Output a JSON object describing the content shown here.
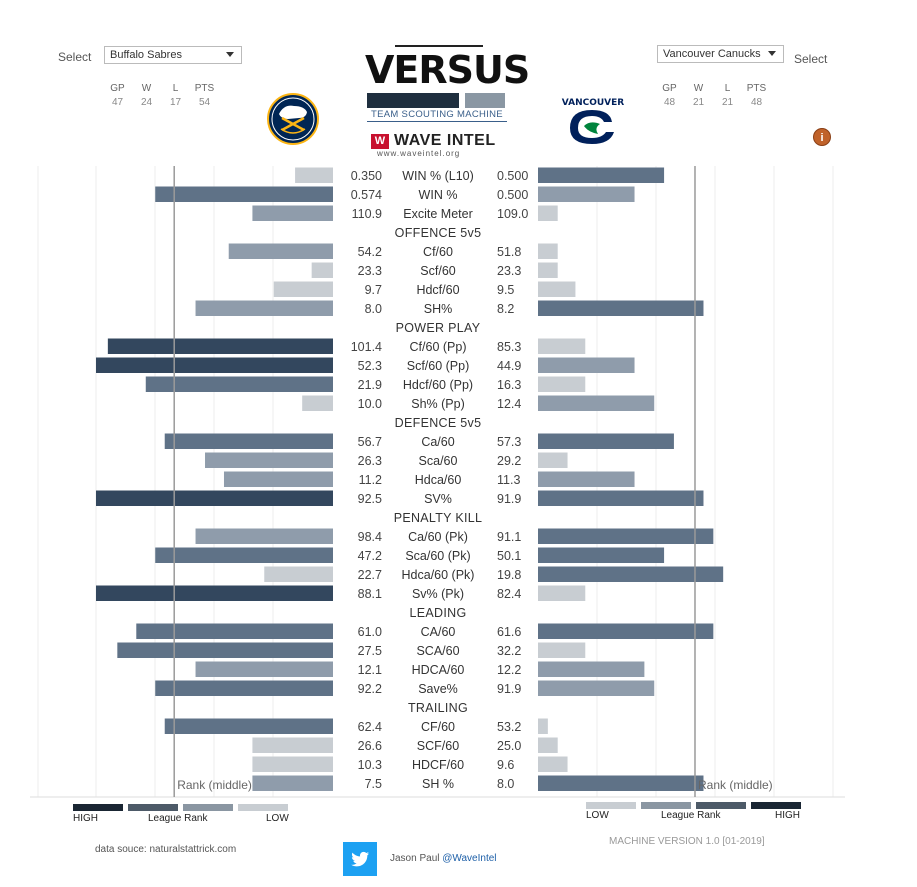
{
  "header": {
    "select_left_label": "Select",
    "select_right_label": "Select",
    "team_left": "Buffalo Sabres",
    "team_right": "Vancouver Canucks",
    "title": "VERSUS",
    "subtitle": "TEAM SCOUTING MACHINE",
    "brand_mark": "W",
    "brand": "WAVE INTEL",
    "brand_url": "www.waveintel.org",
    "info_icon": "i"
  },
  "left_stats": {
    "headers": [
      "GP",
      "W",
      "L",
      "PTS"
    ],
    "values": [
      "47",
      "24",
      "17",
      "54"
    ]
  },
  "right_stats": {
    "headers": [
      "GP",
      "W",
      "L",
      "PTS"
    ],
    "values": [
      "48",
      "21",
      "21",
      "48"
    ]
  },
  "logos": {
    "left": {
      "icon": "buffalo-sabres-logo",
      "colors": [
        "#002654",
        "#fcb514",
        "#ffffff"
      ]
    },
    "right": {
      "icon": "vancouver-canucks-logo",
      "colors": [
        "#00205b",
        "#00843d",
        "#ffffff"
      ],
      "text": "VANCOUVER"
    }
  },
  "chart_data": {
    "type": "bar",
    "description_note": "Mirrored horizontal bars: bar length = league rank strength; shade = rank tier (1 lowest .. 4 highest). Vertical reference line = middle rank.",
    "rows": [
      {
        "kind": "stat",
        "label": "WIN % (L10)",
        "left": "0.350",
        "right": "0.500",
        "left_len": 0.16,
        "left_tier": 1,
        "right_len": 0.64,
        "right_tier": 3
      },
      {
        "kind": "stat",
        "label": "WIN %",
        "left": "0.574",
        "right": "0.500",
        "left_len": 0.75,
        "left_tier": 3,
        "right_len": 0.49,
        "right_tier": 2
      },
      {
        "kind": "stat",
        "label": "Excite Meter",
        "left": "110.9",
        "right": "109.0",
        "left_len": 0.34,
        "left_tier": 2,
        "right_len": 0.1,
        "right_tier": 1
      },
      {
        "kind": "section",
        "label": "OFFENCE 5v5"
      },
      {
        "kind": "stat",
        "label": "Cf/60",
        "left": "54.2",
        "right": "51.8",
        "left_len": 0.44,
        "left_tier": 2,
        "right_len": 0.1,
        "right_tier": 1
      },
      {
        "kind": "stat",
        "label": "Scf/60",
        "left": "23.3",
        "right": "23.3",
        "left_len": 0.09,
        "left_tier": 1,
        "right_len": 0.1,
        "right_tier": 1
      },
      {
        "kind": "stat",
        "label": "Hdcf/60",
        "left": "9.7",
        "right": "9.5",
        "left_len": 0.25,
        "left_tier": 1,
        "right_len": 0.19,
        "right_tier": 1
      },
      {
        "kind": "stat",
        "label": "SH%",
        "left": "8.0",
        "right": "8.2",
        "left_len": 0.58,
        "left_tier": 2,
        "right_len": 0.84,
        "right_tier": 3
      },
      {
        "kind": "section",
        "label": "POWER PLAY"
      },
      {
        "kind": "stat",
        "label": "Cf/60 (Pp)",
        "left": "101.4",
        "right": "85.3",
        "left_len": 0.95,
        "left_tier": 4,
        "right_len": 0.24,
        "right_tier": 1
      },
      {
        "kind": "stat",
        "label": "Scf/60 (Pp)",
        "left": "52.3",
        "right": "44.9",
        "left_len": 1.0,
        "left_tier": 4,
        "right_len": 0.49,
        "right_tier": 2
      },
      {
        "kind": "stat",
        "label": "Hdcf/60 (Pp)",
        "left": "21.9",
        "right": "16.3",
        "left_len": 0.79,
        "left_tier": 3,
        "right_len": 0.24,
        "right_tier": 1
      },
      {
        "kind": "stat",
        "label": "Sh% (Pp)",
        "left": "10.0",
        "right": "12.4",
        "left_len": 0.13,
        "left_tier": 1,
        "right_len": 0.59,
        "right_tier": 2
      },
      {
        "kind": "section",
        "label": "DEFENCE 5v5"
      },
      {
        "kind": "stat",
        "label": "Ca/60",
        "left": "56.7",
        "right": "57.3",
        "left_len": 0.71,
        "left_tier": 3,
        "right_len": 0.69,
        "right_tier": 3
      },
      {
        "kind": "stat",
        "label": "Sca/60",
        "left": "26.3",
        "right": "29.2",
        "left_len": 0.54,
        "left_tier": 2,
        "right_len": 0.15,
        "right_tier": 1
      },
      {
        "kind": "stat",
        "label": "Hdca/60",
        "left": "11.2",
        "right": "11.3",
        "left_len": 0.46,
        "left_tier": 2,
        "right_len": 0.49,
        "right_tier": 2
      },
      {
        "kind": "stat",
        "label": "SV%",
        "left": "92.5",
        "right": "91.9",
        "left_len": 1.0,
        "left_tier": 4,
        "right_len": 0.84,
        "right_tier": 3
      },
      {
        "kind": "section",
        "label": "PENALTY KILL"
      },
      {
        "kind": "stat",
        "label": "Ca/60 (Pk)",
        "left": "98.4",
        "right": "91.1",
        "left_len": 0.58,
        "left_tier": 2,
        "right_len": 0.89,
        "right_tier": 3
      },
      {
        "kind": "stat",
        "label": "Sca/60 (Pk)",
        "left": "47.2",
        "right": "50.1",
        "left_len": 0.75,
        "left_tier": 3,
        "right_len": 0.64,
        "right_tier": 3
      },
      {
        "kind": "stat",
        "label": "Hdca/60 (Pk)",
        "left": "22.7",
        "right": "19.8",
        "left_len": 0.29,
        "left_tier": 1,
        "right_len": 0.94,
        "right_tier": 3
      },
      {
        "kind": "stat",
        "label": "Sv% (Pk)",
        "left": "88.1",
        "right": "82.4",
        "left_len": 1.0,
        "left_tier": 4,
        "right_len": 0.24,
        "right_tier": 1
      },
      {
        "kind": "section",
        "label": "LEADING"
      },
      {
        "kind": "stat",
        "label": "CA/60",
        "left": "61.0",
        "right": "61.6",
        "left_len": 0.83,
        "left_tier": 3,
        "right_len": 0.89,
        "right_tier": 3
      },
      {
        "kind": "stat",
        "label": "SCA/60",
        "left": "27.5",
        "right": "32.2",
        "left_len": 0.91,
        "left_tier": 3,
        "right_len": 0.24,
        "right_tier": 1
      },
      {
        "kind": "stat",
        "label": "HDCA/60",
        "left": "12.1",
        "right": "12.2",
        "left_len": 0.58,
        "left_tier": 2,
        "right_len": 0.54,
        "right_tier": 2
      },
      {
        "kind": "stat",
        "label": "Save%",
        "left": "92.2",
        "right": "91.9",
        "left_len": 0.75,
        "left_tier": 3,
        "right_len": 0.59,
        "right_tier": 2
      },
      {
        "kind": "section",
        "label": "TRAILING"
      },
      {
        "kind": "stat",
        "label": "CF/60",
        "left": "62.4",
        "right": "53.2",
        "left_len": 0.71,
        "left_tier": 3,
        "right_len": 0.05,
        "right_tier": 1
      },
      {
        "kind": "stat",
        "label": "SCF/60",
        "left": "26.6",
        "right": "25.0",
        "left_len": 0.34,
        "left_tier": 1,
        "right_len": 0.1,
        "right_tier": 1
      },
      {
        "kind": "stat",
        "label": "HDCF/60",
        "left": "10.3",
        "right": "9.6",
        "left_len": 0.34,
        "left_tier": 1,
        "right_len": 0.15,
        "right_tier": 1
      },
      {
        "kind": "stat",
        "label": "SH %",
        "left": "7.5",
        "right": "8.0",
        "left_len": 0.34,
        "left_tier": 2,
        "right_len": 0.84,
        "right_tier": 3
      }
    ],
    "rank_middle_label": "Rank (middle)",
    "rank_middle_pos": 0.67,
    "tier_colors": [
      "#c8cdd2",
      "#8f9cab",
      "#5f7287",
      "#33475e"
    ],
    "legend": {
      "left": {
        "high": "HIGH",
        "mid": "League Rank",
        "low": "LOW",
        "colors": [
          "#1a2633",
          "#4d5a68",
          "#8a96a2",
          "#c8cdd2"
        ]
      },
      "right": {
        "low": "LOW",
        "mid": "League Rank",
        "high": "HIGH",
        "colors": [
          "#c8cdd2",
          "#8a96a2",
          "#4d5a68",
          "#1a2633"
        ]
      }
    }
  },
  "footer": {
    "source": "data souce:  naturalstattrick.com",
    "author_prefix": "Jason Paul",
    "author_handle": "@WaveIntel",
    "version": "MACHINE VERSION 1.0 [01-2019]",
    "twitter_icon": "twitter-bird-icon"
  }
}
